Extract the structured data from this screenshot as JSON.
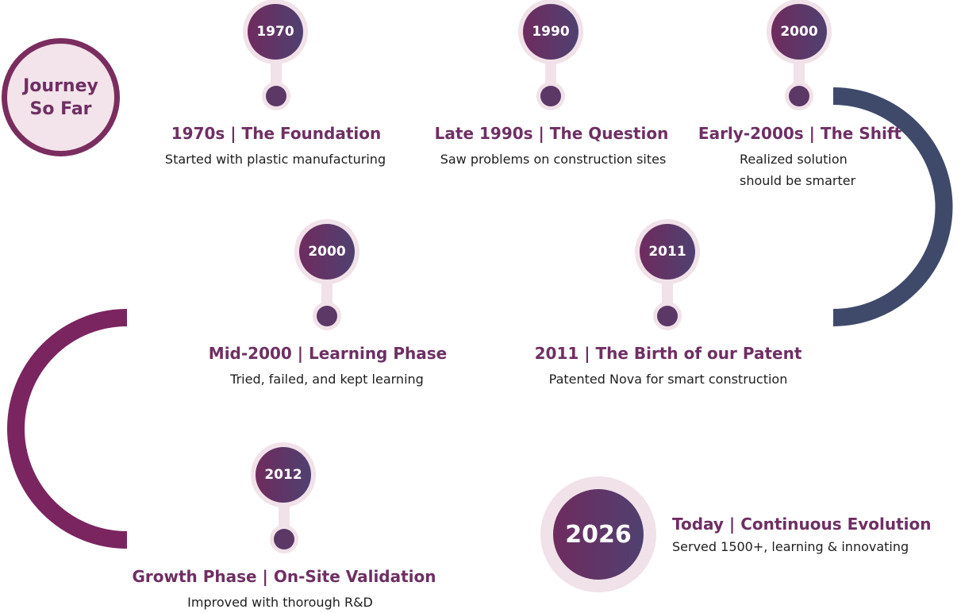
{
  "start": {
    "label": "Journey\nSo Far"
  },
  "milestones": [
    {
      "year": "1970",
      "title": "1970s | The Foundation",
      "description": "Started with plastic manufacturing"
    },
    {
      "year": "1990",
      "title": "Late 1990s | The Question",
      "description": "Saw problems on construction sites"
    },
    {
      "year": "2000",
      "title": "Early-2000s | The Shift",
      "description_lines": [
        "Realized solution",
        "should be smarter"
      ]
    },
    {
      "year": "2000",
      "title": "Mid-2000 | Learning Phase",
      "description": "Tried, failed, and kept learning"
    },
    {
      "year": "2011",
      "title": "2011 | The Birth of our Patent",
      "description": "Patented Nova for smart construction"
    },
    {
      "year": "2012",
      "title": "Growth Phase | On-Site Validation",
      "description": "Improved with thorough R&D"
    }
  ],
  "final": {
    "year": "2026",
    "title": "Today | Continuous Evolution",
    "description": "Served 1500+, learning & innovating"
  },
  "colors": {
    "plum": "#7a2d5f",
    "slate": "#3f4a6b",
    "ring": "#f1e1e9",
    "title": "#6e2f63"
  }
}
